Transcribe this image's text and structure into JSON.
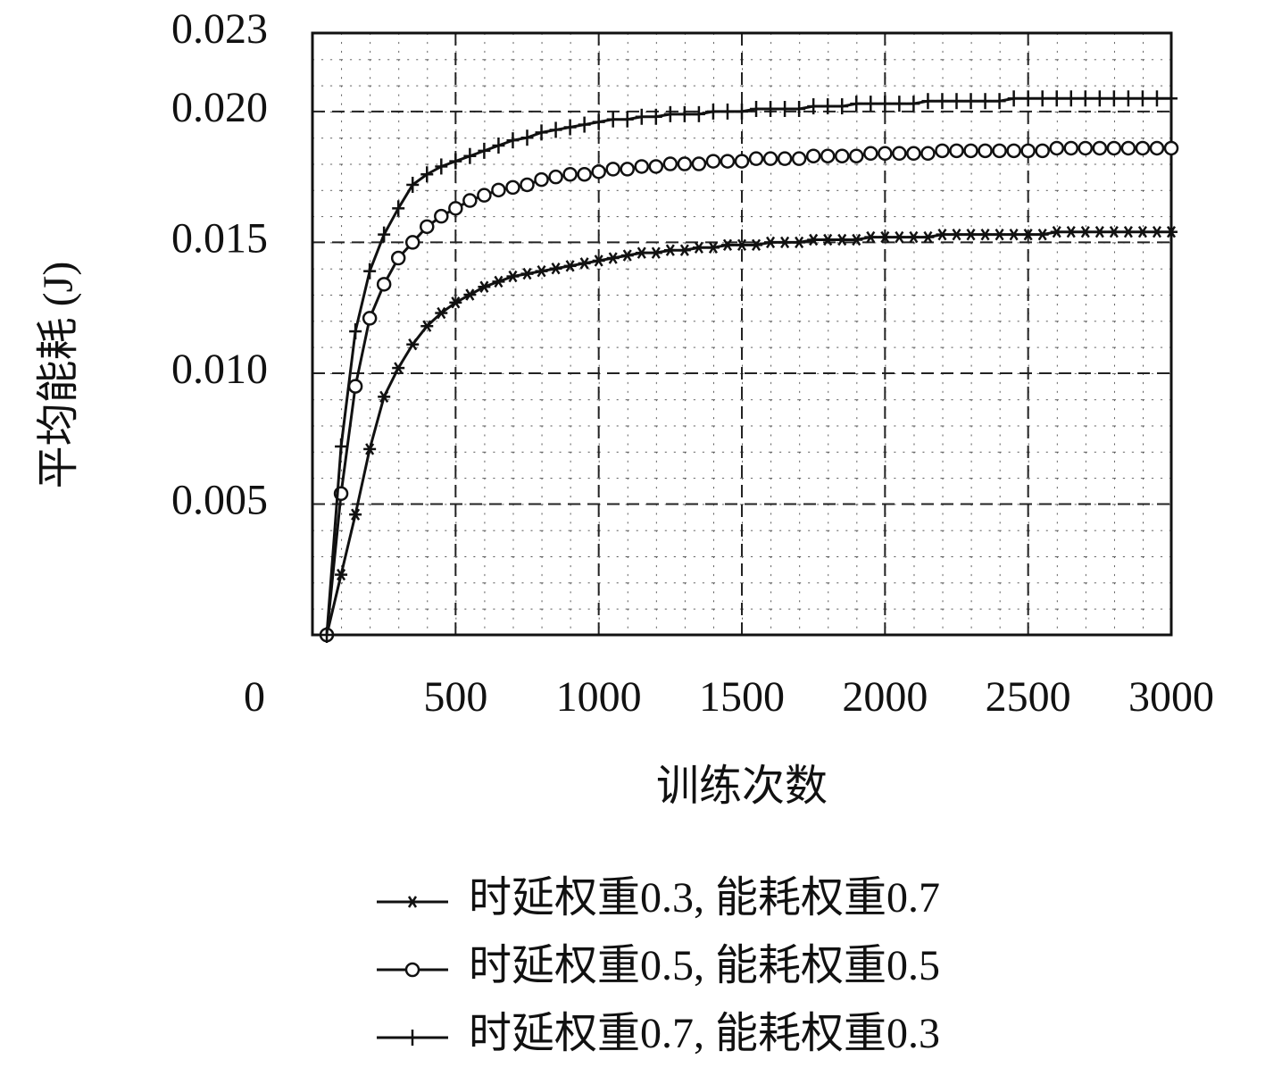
{
  "chart_data": {
    "type": "line",
    "xlabel": "训练次数",
    "ylabel": "平均能耗 (J)",
    "x": [
      50,
      100,
      150,
      200,
      250,
      300,
      350,
      400,
      450,
      500,
      550,
      600,
      650,
      700,
      750,
      800,
      850,
      900,
      950,
      1000,
      1050,
      1100,
      1150,
      1200,
      1250,
      1300,
      1350,
      1400,
      1450,
      1500,
      1550,
      1600,
      1650,
      1700,
      1750,
      1800,
      1850,
      1900,
      1950,
      2000,
      2050,
      2100,
      2150,
      2200,
      2250,
      2300,
      2350,
      2400,
      2450,
      2500,
      2550,
      2600,
      2650,
      2700,
      2750,
      2800,
      2850,
      2900,
      2950,
      3000
    ],
    "series": [
      {
        "name": "时延权重0.3, 能耗权重0.7",
        "color": "#111111",
        "marker": "star",
        "values": [
          0,
          0.0023,
          0.0046,
          0.0071,
          0.0091,
          0.0102,
          0.0111,
          0.0118,
          0.0123,
          0.0127,
          0.013,
          0.0133,
          0.0135,
          0.0137,
          0.0138,
          0.0139,
          0.014,
          0.0141,
          0.0142,
          0.0143,
          0.0144,
          0.0145,
          0.0146,
          0.0146,
          0.0147,
          0.0147,
          0.0148,
          0.0148,
          0.0149,
          0.0149,
          0.0149,
          0.015,
          0.015,
          0.015,
          0.0151,
          0.0151,
          0.0151,
          0.0151,
          0.0152,
          0.0152,
          0.0152,
          0.0152,
          0.0152,
          0.0153,
          0.0153,
          0.0153,
          0.0153,
          0.0153,
          0.0153,
          0.0153,
          0.0153,
          0.0154,
          0.0154,
          0.0154,
          0.0154,
          0.0154,
          0.0154,
          0.0154,
          0.0154,
          0.0154
        ]
      },
      {
        "name": "时延权重0.5, 能耗权重0.5",
        "color": "#111111",
        "marker": "circle",
        "values": [
          0,
          0.0054,
          0.0095,
          0.0121,
          0.0134,
          0.0144,
          0.015,
          0.0156,
          0.016,
          0.0163,
          0.0166,
          0.0168,
          0.017,
          0.0171,
          0.0172,
          0.0174,
          0.0175,
          0.0176,
          0.0176,
          0.0177,
          0.0178,
          0.0178,
          0.0179,
          0.0179,
          0.018,
          0.018,
          0.018,
          0.0181,
          0.0181,
          0.0181,
          0.0182,
          0.0182,
          0.0182,
          0.0182,
          0.0183,
          0.0183,
          0.0183,
          0.0183,
          0.0184,
          0.0184,
          0.0184,
          0.0184,
          0.0184,
          0.0185,
          0.0185,
          0.0185,
          0.0185,
          0.0185,
          0.0185,
          0.0185,
          0.0185,
          0.0186,
          0.0186,
          0.0186,
          0.0186,
          0.0186,
          0.0186,
          0.0186,
          0.0186,
          0.0186
        ]
      },
      {
        "name": "时延权重0.7, 能耗权重0.3",
        "color": "#111111",
        "marker": "plus",
        "values": [
          0,
          0.0072,
          0.0116,
          0.0139,
          0.0153,
          0.0163,
          0.0172,
          0.0176,
          0.0179,
          0.0181,
          0.0183,
          0.0185,
          0.0187,
          0.0189,
          0.019,
          0.0192,
          0.0193,
          0.0194,
          0.0195,
          0.0196,
          0.0197,
          0.0197,
          0.0198,
          0.0198,
          0.0199,
          0.0199,
          0.0199,
          0.02,
          0.02,
          0.02,
          0.0201,
          0.0201,
          0.0201,
          0.0201,
          0.0202,
          0.0202,
          0.0202,
          0.0203,
          0.0203,
          0.0203,
          0.0203,
          0.0203,
          0.0204,
          0.0204,
          0.0204,
          0.0204,
          0.0204,
          0.0204,
          0.0205,
          0.0205,
          0.0205,
          0.0205,
          0.0205,
          0.0205,
          0.0205,
          0.0205,
          0.0205,
          0.0205,
          0.0205,
          0.0205
        ]
      }
    ],
    "xlim": [
      0,
      3000
    ],
    "xticks": [
      0,
      500,
      1000,
      1500,
      2000,
      2500,
      3000
    ],
    "ylim": [
      0,
      0.023
    ],
    "yticks": [
      0.005,
      {
        "value": 0.01,
        "label": "0.010"
      },
      0.015,
      {
        "value": 0.02,
        "label": "0.020"
      },
      0.023
    ],
    "grid": true,
    "legend": "bottom"
  }
}
